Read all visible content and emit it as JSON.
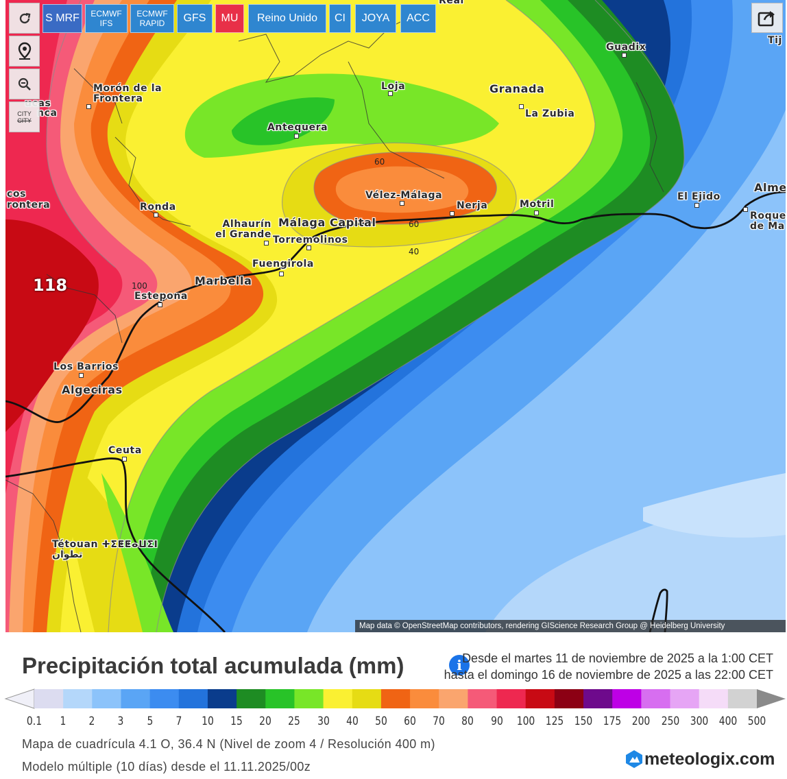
{
  "toolbar": {
    "models": [
      {
        "label": "S MRF",
        "color": "#3a6bc4"
      },
      {
        "label": "ECMWF IFS",
        "color": "#2f86d0"
      },
      {
        "label": "ECMWF RAPID",
        "color": "#2f86d0"
      },
      {
        "label": "GFS",
        "color": "#2f86d0"
      },
      {
        "label": "MU",
        "color": "#e83048"
      },
      {
        "label": "Reino Unido",
        "color": "#2f86d0"
      },
      {
        "label": "CI",
        "color": "#2f86d0"
      },
      {
        "label": "JOYA",
        "color": "#2f86d0"
      },
      {
        "label": "ACC",
        "color": "#2f86d0"
      }
    ],
    "city_toggle": "CITY"
  },
  "map": {
    "cities": [
      {
        "name": "Guadix"
      },
      {
        "name": "Morón de la Frontera"
      },
      {
        "name": "Loja"
      },
      {
        "name": "Granada"
      },
      {
        "name": "La Zubia"
      },
      {
        "name": "Antequera"
      },
      {
        "name": "Ronda"
      },
      {
        "name": "Vélez-Málaga"
      },
      {
        "name": "Nerja"
      },
      {
        "name": "Motril"
      },
      {
        "name": "El Ejido"
      },
      {
        "name": "Alhaurín el Grande"
      },
      {
        "name": "Málaga Capital"
      },
      {
        "name": "Torremolinos"
      },
      {
        "name": "Fuengirola"
      },
      {
        "name": "Marbella"
      },
      {
        "name": "Estepona"
      },
      {
        "name": "Los Barrios"
      },
      {
        "name": "Algeciras"
      },
      {
        "name": "Ceuta"
      },
      {
        "name": "Tétouan ⵜⵉⵟⵟⴰⵡⵉⵏ تطوان"
      },
      {
        "name": "Alme"
      },
      {
        "name": "Roque de Ma"
      },
      {
        "name": "Tij"
      },
      {
        "name": "Real"
      }
    ],
    "partial_labels": [
      "cos",
      "rontera",
      "ucas",
      "nca"
    ],
    "contour_labels": [
      "60",
      "60",
      "40",
      "100"
    ],
    "max_value_label": "118",
    "attribution": "Map data © OpenStreetMap contributors, rendering GIScience Research Group @ Heidelberg University"
  },
  "legend": {
    "title": "Precipitación total acumulada (mm)",
    "date_from": "Desde el martes 11 de noviembre de 2025 a  la 1:00 CET",
    "date_to": "hasta el domingo 16 de noviembre de 2025 a  las 22:00 CET",
    "colors": [
      "#dcdcf0",
      "#b4d7fa",
      "#8cc3fa",
      "#5aa5f5",
      "#3c8cf0",
      "#2373dc",
      "#0a3c8c",
      "#1e8c23",
      "#28c328",
      "#78e628",
      "#faf032",
      "#e6dc14",
      "#f06414",
      "#fa8c3c",
      "#faa56e",
      "#f55a78",
      "#ee2850",
      "#c80a14",
      "#8c0014",
      "#6e0a8c",
      "#be00e6",
      "#d76ef0",
      "#e6a5f5",
      "#f5dcf8",
      "#d2d2d2"
    ],
    "labels": [
      "0.1",
      "1",
      "2",
      "3",
      "5",
      "7",
      "10",
      "15",
      "20",
      "25",
      "30",
      "40",
      "50",
      "60",
      "70",
      "80",
      "90",
      "100",
      "125",
      "150",
      "175",
      "200",
      "250",
      "300",
      "400",
      "500"
    ],
    "grid_info": "Mapa de cuadrícula 4.1 O, 36.4 N (Nivel de zoom 4 / Resolución 400 m)",
    "model_info": "Modelo múltiple (10 días) desde el 11.11.2025/00z"
  },
  "brand": {
    "name": "meteologix.com"
  }
}
